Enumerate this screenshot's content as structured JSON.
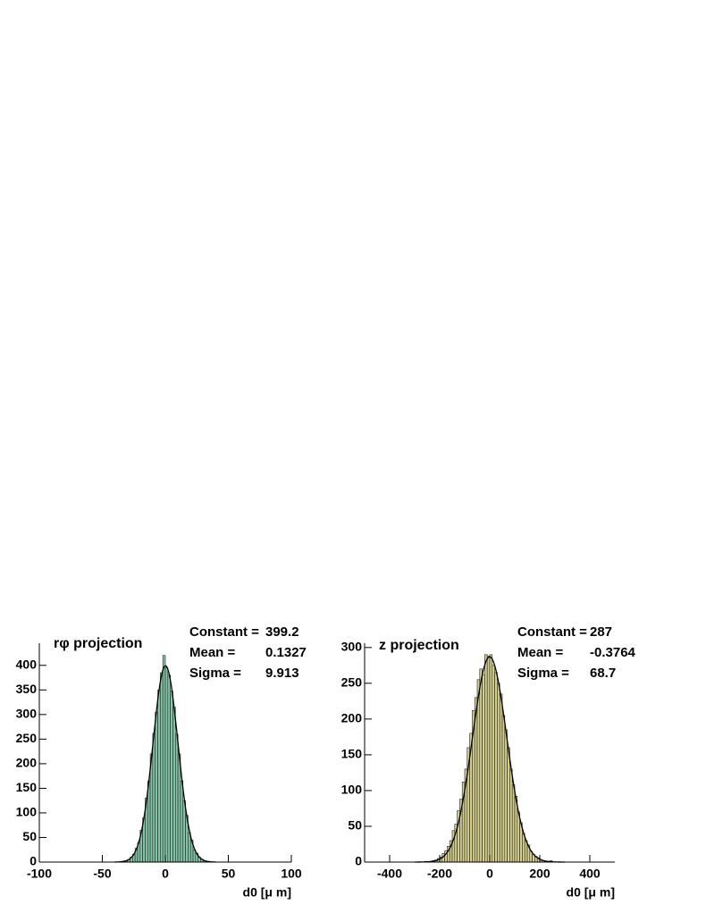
{
  "chart_data": [
    {
      "type": "histogram",
      "title": "rφ projection",
      "x_label": "d0 [μ m]",
      "color": "#82c4a5",
      "stats": [
        {
          "label": "Constant =",
          "value": 399.2
        },
        {
          "label": "Mean =",
          "value": 0.1327
        },
        {
          "label": "Sigma =",
          "value": 9.913
        }
      ],
      "bins": [
        -40,
        -38,
        -36,
        -34,
        -32,
        -30,
        -28,
        -26,
        -24,
        -22,
        -20,
        -18,
        -16,
        -14,
        -12,
        -10,
        -8,
        -6,
        -4,
        -2,
        0,
        2,
        4,
        6,
        8,
        10,
        12,
        14,
        16,
        18,
        20,
        22,
        24,
        26,
        28,
        30,
        32,
        34,
        36,
        38,
        40
      ],
      "counts": [
        0,
        0,
        1,
        2,
        3,
        5,
        10,
        16,
        28,
        40,
        65,
        90,
        130,
        165,
        220,
        262,
        305,
        350,
        385,
        420,
        395,
        380,
        348,
        315,
        260,
        220,
        165,
        125,
        95,
        60,
        45,
        25,
        18,
        10,
        6,
        3,
        2,
        1,
        0,
        0
      ],
      "xlim": [
        -100,
        100
      ],
      "xticks": [
        -100,
        -50,
        0,
        50,
        100
      ],
      "ylim": [
        0,
        445
      ],
      "yticks": [
        0,
        50,
        100,
        150,
        200,
        250,
        300,
        350,
        400
      ]
    },
    {
      "type": "histogram",
      "title": "z projection",
      "x_label": "d0 [μ m]",
      "color": "#d4d08c",
      "stats": [
        {
          "label": "Constant =",
          "value": 287
        },
        {
          "label": "Mean =",
          "value": -0.3764
        },
        {
          "label": "Sigma =",
          "value": 68.7
        }
      ],
      "bins": [
        -300,
        -290,
        -280,
        -270,
        -260,
        -250,
        -240,
        -230,
        -220,
        -210,
        -200,
        -190,
        -180,
        -170,
        -160,
        -150,
        -140,
        -130,
        -120,
        -110,
        -100,
        -90,
        -80,
        -70,
        -60,
        -50,
        -40,
        -30,
        -20,
        -10,
        0,
        10,
        20,
        30,
        40,
        50,
        60,
        70,
        80,
        90,
        100,
        110,
        120,
        130,
        140,
        150,
        160,
        170,
        180,
        190,
        200,
        210,
        220,
        230,
        240,
        250,
        260,
        270,
        280,
        290,
        300
      ],
      "counts": [
        0,
        0,
        0,
        0,
        1,
        0,
        1,
        2,
        3,
        5,
        7,
        12,
        16,
        22,
        30,
        44,
        53,
        72,
        88,
        112,
        130,
        160,
        180,
        212,
        230,
        255,
        270,
        262,
        290,
        288,
        290,
        275,
        265,
        250,
        235,
        205,
        185,
        160,
        130,
        108,
        92,
        70,
        55,
        40,
        30,
        24,
        15,
        11,
        8,
        6,
        3,
        2,
        1,
        1,
        2,
        0,
        0,
        0,
        0,
        0
      ],
      "xlim": [
        -500,
        500
      ],
      "xticks": [
        -400,
        -200,
        0,
        200,
        400
      ],
      "ylim": [
        0,
        306
      ],
      "yticks": [
        0,
        50,
        100,
        150,
        200,
        250,
        300
      ]
    }
  ]
}
